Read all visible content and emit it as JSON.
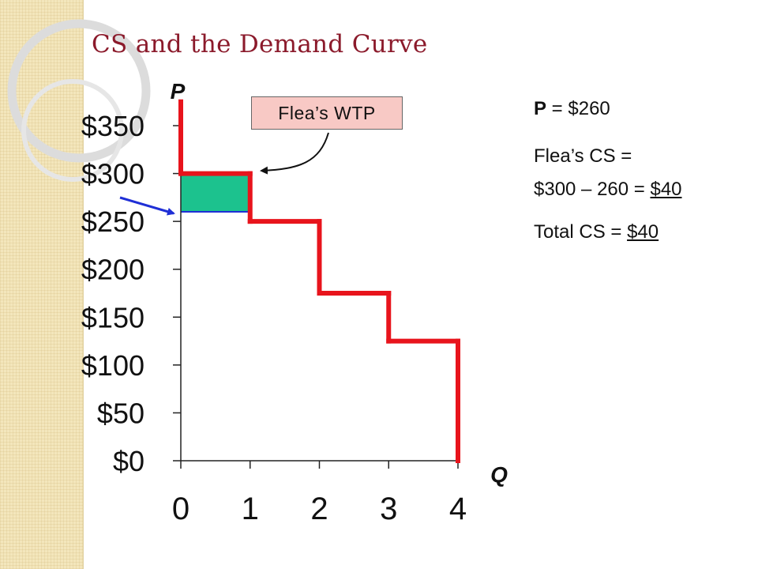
{
  "slide": {
    "title": "CS and the Demand Curve",
    "callout": "Flea’s WTP",
    "info": {
      "line1_var": "P",
      "line1_rest": " = $260",
      "line2": "Flea’s CS =",
      "line3_prefix": "$300 – 260 = ",
      "line3_value": "$40",
      "line4_prefix": "Total CS = ",
      "line4_value": "$40"
    }
  },
  "chart_data": {
    "type": "line",
    "xlabel": "Q",
    "ylabel": "P",
    "xlim": [
      0,
      4
    ],
    "ylim": [
      0,
      350
    ],
    "x_ticks": [
      0,
      1,
      2,
      3,
      4
    ],
    "y_ticks": [
      0,
      50,
      100,
      150,
      200,
      250,
      300,
      350
    ],
    "y_tick_labels": [
      "$0",
      "$50",
      "$100",
      "$150",
      "$200",
      "$250",
      "$300",
      "$350"
    ],
    "demand_curve": {
      "style": "step",
      "points": [
        [
          0,
          375
        ],
        [
          0,
          300
        ],
        [
          1,
          300
        ],
        [
          1,
          250
        ],
        [
          2,
          250
        ],
        [
          2,
          175
        ],
        [
          3,
          175
        ],
        [
          3,
          125
        ],
        [
          4,
          125
        ],
        [
          4,
          0
        ]
      ]
    },
    "price": 260,
    "consumer_surplus": {
      "q_from": 0,
      "q_to": 1,
      "p_low": 260,
      "p_high": 300
    },
    "colors": {
      "curve": "#e8141c",
      "surplus": "#1cc28e",
      "price_line": "#1f2fd6",
      "arrow": "#1f2fd6"
    }
  }
}
